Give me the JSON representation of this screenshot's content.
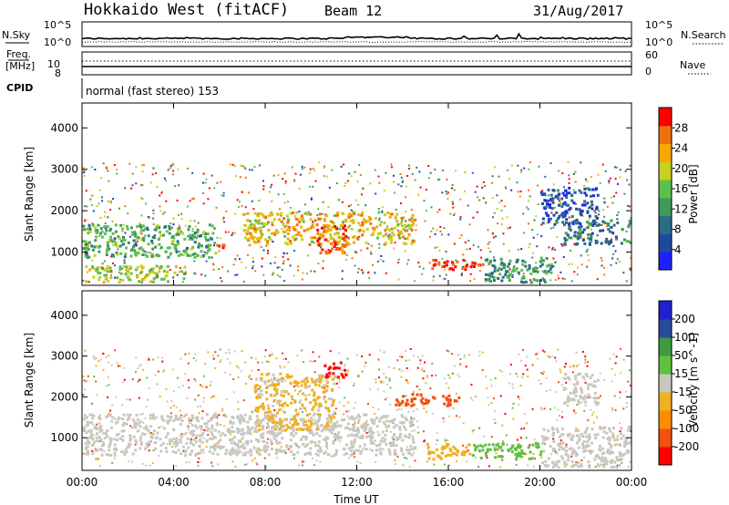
{
  "header": {
    "station": "Hokkaido West (fitACF)",
    "beam": "Beam 12",
    "date": "31/Aug/2017"
  },
  "noise_panel": {
    "left_label": "N.Sky",
    "right_label": "N.Search",
    "left_ticks": [
      "10^5",
      "10^0"
    ],
    "right_ticks": [
      "10^5",
      "10^0"
    ]
  },
  "freq_panel": {
    "left_label_1": "Freq.",
    "left_label_2": "[MHz]",
    "left_ticks": [
      "10",
      "8"
    ],
    "right_label": "Nave",
    "right_ticks": [
      "60",
      "0"
    ]
  },
  "cpid": {
    "label": "CPID",
    "text": "normal (fast stereo) 153"
  },
  "chart_data": [
    {
      "type": "heatmap",
      "title": "",
      "xlabel": "",
      "ylabel": "Slant Range [km]",
      "x_ticks": [
        "00:00",
        "04:00",
        "08:00",
        "12:00",
        "16:00",
        "20:00",
        "00:00"
      ],
      "xlim_hours": [
        0,
        24
      ],
      "y_ticks": [
        1000,
        2000,
        3000,
        4000
      ],
      "ylim": [
        200,
        4600
      ],
      "grid": false,
      "colorbar": {
        "label": "Power [dB]",
        "range": [
          0,
          32
        ],
        "ticks": [
          4,
          8,
          12,
          16,
          20,
          24,
          28
        ],
        "colors": [
          "#2020ff",
          "#1e4a9e",
          "#2a6b8a",
          "#3f9a5a",
          "#5cc050",
          "#c8d020",
          "#f5a800",
          "#f07010",
          "#ff0000"
        ]
      },
      "features": [
        {
          "t": [
            0.0,
            5.8
          ],
          "range": [
            900,
            1700
          ],
          "value_db": 14
        },
        {
          "t": [
            5.8,
            6.3
          ],
          "range": [
            1100,
            1300
          ],
          "value_db": 28
        },
        {
          "t": [
            7.0,
            14.5
          ],
          "range": [
            1200,
            2000
          ],
          "value_db": 22
        },
        {
          "t": [
            10.0,
            11.5
          ],
          "range": [
            1000,
            1700
          ],
          "value_db": 28
        },
        {
          "t": [
            15.0,
            17.5
          ],
          "range": [
            600,
            850
          ],
          "value_db": 30
        },
        {
          "t": [
            17.5,
            20.5
          ],
          "range": [
            300,
            900
          ],
          "value_db": 12
        },
        {
          "t": [
            21.0,
            24.0
          ],
          "range": [
            1200,
            1800
          ],
          "value_db": 10
        },
        {
          "t": [
            20.0,
            22.5
          ],
          "range": [
            1700,
            2600
          ],
          "value_db": 6
        },
        {
          "t": [
            0.0,
            4.5
          ],
          "range": [
            300,
            700
          ],
          "value_db": 18
        }
      ]
    },
    {
      "type": "heatmap",
      "title": "",
      "xlabel": "Time UT",
      "ylabel": "Slant Range [km]",
      "x_ticks": [
        "00:00",
        "04:00",
        "08:00",
        "12:00",
        "16:00",
        "20:00",
        "00:00"
      ],
      "xlim_hours": [
        0,
        24
      ],
      "y_ticks": [
        1000,
        2000,
        3000,
        4000
      ],
      "ylim": [
        200,
        4600
      ],
      "grid": false,
      "colorbar": {
        "label": "Velocity [m s^-1]",
        "range": [
          -250,
          250
        ],
        "ticks": [
          200,
          100,
          50,
          15,
          -15,
          -50,
          -100,
          -200
        ],
        "colors": [
          "#ff0000",
          "#f05010",
          "#ff8c00",
          "#f0b020",
          "#c8c8c0",
          "#60c040",
          "#409a40",
          "#2a4aa0",
          "#2020d0"
        ]
      },
      "features": [
        {
          "t": [
            0.0,
            14.5
          ],
          "range": [
            600,
            1600
          ],
          "value_ms": 0
        },
        {
          "t": [
            7.5,
            11.0
          ],
          "range": [
            1200,
            2600
          ],
          "value_ms": -30
        },
        {
          "t": [
            10.5,
            11.5
          ],
          "range": [
            2500,
            2900
          ],
          "value_ms": -200
        },
        {
          "t": [
            13.5,
            16.5
          ],
          "range": [
            1800,
            2100
          ],
          "value_ms": -150
        },
        {
          "t": [
            15.0,
            17.0
          ],
          "range": [
            500,
            900
          ],
          "value_ms": -60
        },
        {
          "t": [
            17.0,
            20.0
          ],
          "range": [
            500,
            900
          ],
          "value_ms": 40
        },
        {
          "t": [
            20.0,
            24.0
          ],
          "range": [
            300,
            1300
          ],
          "value_ms": 0
        },
        {
          "t": [
            21.0,
            22.5
          ],
          "range": [
            1800,
            2600
          ],
          "value_ms": 5
        }
      ]
    }
  ]
}
